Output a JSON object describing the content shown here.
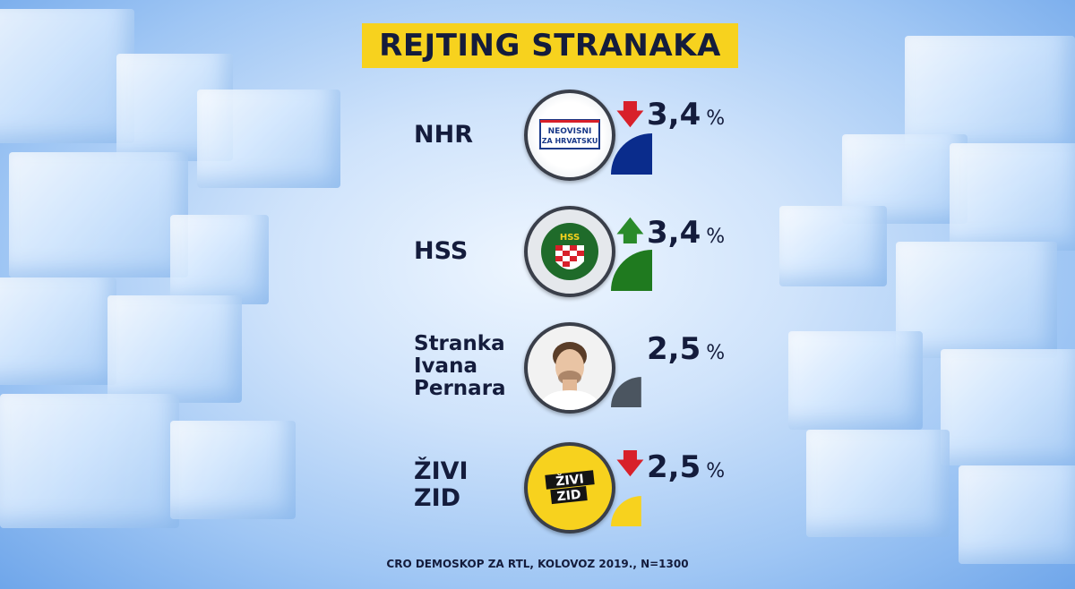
{
  "chart_data": {
    "type": "bar",
    "title": "REJTING STRANAKA",
    "categories": [
      "NHR",
      "HSS",
      "Stranka Ivana Pernara",
      "ŽIVI ZID"
    ],
    "values": [
      3.4,
      3.4,
      2.5,
      2.5
    ],
    "value_labels": [
      "3,4",
      "3,4",
      "2,5",
      "2,5"
    ],
    "unit": "%",
    "trend": [
      "down",
      "up",
      "none",
      "down"
    ],
    "bar_colors": [
      "#0a2c8c",
      "#1f7a1f",
      "#4b5560",
      "#f7d21e"
    ],
    "source": "CRO DEMOSKOP ZA RTL, KOLOVOZ 2019., N=1300"
  },
  "parties": [
    {
      "name_lines": [
        "NHR"
      ],
      "logo_icon": "nhr-logo-icon",
      "logo_text": [
        "NEOVISNI",
        "ZA HRVATSKU"
      ]
    },
    {
      "name_lines": [
        "HSS"
      ],
      "logo_icon": "hss-logo-icon",
      "logo_text": [
        "HSS"
      ]
    },
    {
      "name_lines": [
        "Stranka",
        "Ivana",
        "Pernara"
      ],
      "logo_icon": "person-portrait-icon",
      "logo_text": []
    },
    {
      "name_lines": [
        "ŽIVI",
        "ZID"
      ],
      "logo_icon": "zivi-zid-logo-icon",
      "logo_text": [
        "ŽIVI",
        "ZID"
      ]
    }
  ],
  "arrows": {
    "down": "🡇",
    "up": "🡅"
  },
  "colors": {
    "title_bg": "#f7d21e",
    "text": "#141c3c",
    "down_arrow": "#d8202a",
    "up_arrow": "#2a8a2a"
  }
}
